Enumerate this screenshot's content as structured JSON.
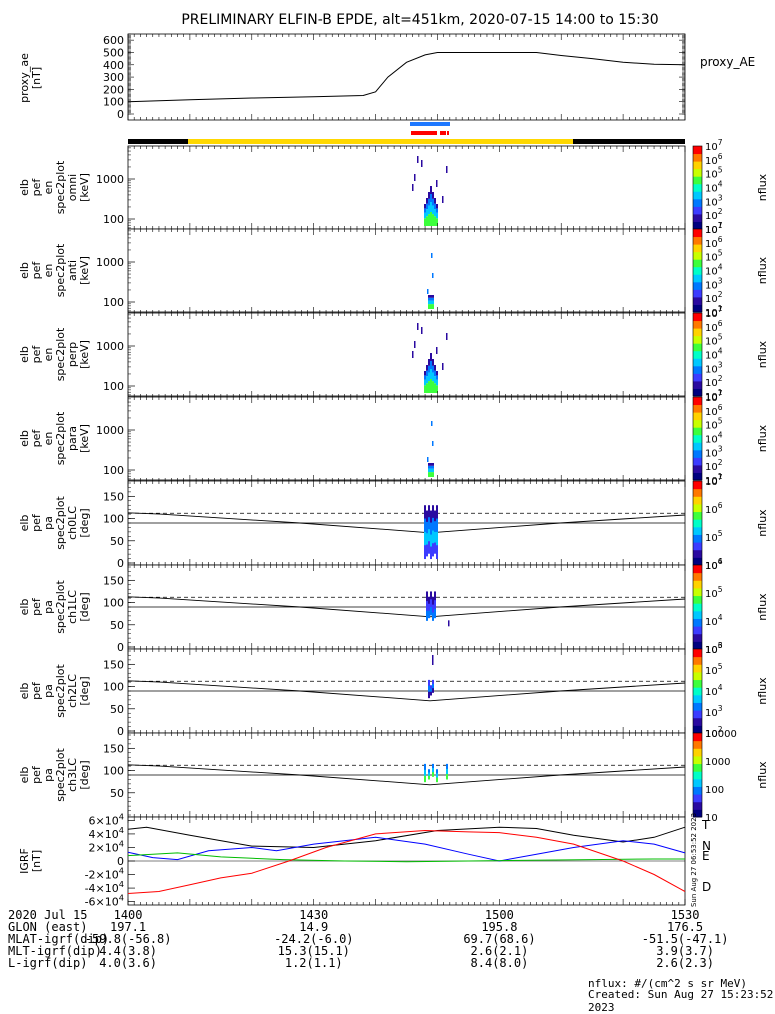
{
  "title": "PRELIMINARY ELFIN-B EPDE, alt=451km, 2020-07-15 14:00 to 15:30",
  "chart_data": [
    {
      "type": "line",
      "name": "proxy_ae_panel",
      "ylabel_lines": [
        "proxy_ae",
        "[nT]"
      ],
      "series_label": "proxy_AE",
      "ylim": [
        0,
        650
      ],
      "yticks": [
        "0",
        "100",
        "200",
        "300",
        "400",
        "500",
        "600"
      ],
      "xlim_minutes": [
        0,
        90
      ],
      "series": [
        {
          "name": "proxy_AE",
          "x_minutes": [
            0,
            10,
            20,
            30,
            38,
            40,
            42,
            45,
            48,
            50,
            52,
            55,
            60,
            66,
            70,
            75,
            80,
            85,
            90
          ],
          "values": [
            100,
            115,
            130,
            140,
            150,
            180,
            300,
            420,
            480,
            500,
            500,
            500,
            500,
            500,
            475,
            450,
            420,
            405,
            400
          ]
        }
      ]
    },
    {
      "type": "heatmap",
      "name": "omni_spectrogram",
      "ylabel_lines": [
        "elb",
        "pef",
        "en",
        "spec2plot",
        "omni",
        "[keV]"
      ],
      "yticks": [
        "100",
        "1000"
      ],
      "colorbar_label": "nflux",
      "colorbar_ticks": [
        "10^1",
        "10^2",
        "10^3",
        "10^4",
        "10^5",
        "10^6",
        "10^7"
      ]
    },
    {
      "type": "heatmap",
      "name": "anti_spectrogram",
      "ylabel_lines": [
        "elb",
        "pef",
        "en",
        "spec2plot",
        "anti",
        "[keV]"
      ],
      "yticks": [
        "100",
        "1000"
      ],
      "colorbar_label": "nflux",
      "colorbar_ticks": [
        "10^1",
        "10^2",
        "10^3",
        "10^4",
        "10^5",
        "10^6",
        "10^7"
      ]
    },
    {
      "type": "heatmap",
      "name": "perp_spectrogram",
      "ylabel_lines": [
        "elb",
        "pef",
        "en",
        "spec2plot",
        "perp",
        "[keV]"
      ],
      "yticks": [
        "100",
        "1000"
      ],
      "colorbar_label": "nflux",
      "colorbar_ticks": [
        "10^1",
        "10^2",
        "10^3",
        "10^4",
        "10^5",
        "10^6",
        "10^7"
      ]
    },
    {
      "type": "heatmap",
      "name": "para_spectrogram",
      "ylabel_lines": [
        "elb",
        "pef",
        "en",
        "spec2plot",
        "para",
        "[keV]"
      ],
      "yticks": [
        "100",
        "1000"
      ],
      "colorbar_label": "nflux",
      "colorbar_ticks": [
        "10^1",
        "10^2",
        "10^3",
        "10^4",
        "10^5",
        "10^6",
        "10^7"
      ]
    },
    {
      "type": "heatmap",
      "name": "ch0LC_pitch_angle",
      "ylabel_lines": [
        "elb",
        "pef",
        "pa",
        "spec2plot",
        "ch0LC",
        "[deg]"
      ],
      "yticks": [
        "0",
        "50",
        "100",
        "150"
      ],
      "colorbar_label": "nflux",
      "colorbar_ticks": [
        "10^4",
        "10^5",
        "10^6",
        "10^7"
      ]
    },
    {
      "type": "heatmap",
      "name": "ch1LC_pitch_angle",
      "ylabel_lines": [
        "elb",
        "pef",
        "pa",
        "spec2plot",
        "ch1LC",
        "[deg]"
      ],
      "yticks": [
        "0",
        "50",
        "100",
        "150"
      ],
      "colorbar_label": "nflux",
      "colorbar_ticks": [
        "10^3",
        "10^4",
        "10^5",
        "10^6"
      ]
    },
    {
      "type": "heatmap",
      "name": "ch2LC_pitch_angle",
      "ylabel_lines": [
        "elb",
        "pef",
        "pa",
        "spec2plot",
        "ch2LC",
        "[deg]"
      ],
      "yticks": [
        "0",
        "50",
        "100",
        "150"
      ],
      "colorbar_label": "nflux",
      "colorbar_ticks": [
        "10^2",
        "10^3",
        "10^4",
        "10^5",
        "10^6"
      ]
    },
    {
      "type": "heatmap",
      "name": "ch3LC_pitch_angle",
      "ylabel_lines": [
        "elb",
        "pef",
        "pa",
        "spec2plot",
        "ch3LC",
        "[deg]"
      ],
      "yticks": [
        "50",
        "100",
        "150"
      ],
      "colorbar_label": "nflux",
      "colorbar_ticks": [
        "10",
        "100",
        "1000",
        "10000"
      ]
    },
    {
      "type": "line",
      "name": "igrf_panel",
      "ylabel_lines": [
        "IGRF",
        "[nT]"
      ],
      "ylim": [
        -65000,
        65000
      ],
      "yticks": [
        "-6×10^4",
        "-4×10^4",
        "-2×10^4",
        "0",
        "2×10^4",
        "4×10^4",
        "6×10^4"
      ],
      "xlim_minutes": [
        0,
        90
      ],
      "series": [
        {
          "name": "T",
          "color": "#000000",
          "x_minutes": [
            0,
            3,
            10,
            20,
            30,
            40,
            50,
            60,
            66,
            72,
            80,
            85,
            90
          ],
          "values": [
            47000,
            50000,
            38000,
            22000,
            20000,
            30000,
            45000,
            50000,
            48000,
            38000,
            28000,
            35000,
            50000
          ]
        },
        {
          "name": "N",
          "color": "#0000ff",
          "x_minutes": [
            0,
            4,
            8,
            13,
            20,
            24,
            30,
            40,
            48,
            55,
            60,
            66,
            72,
            80,
            85,
            90
          ],
          "values": [
            13000,
            5000,
            2000,
            15000,
            20000,
            15000,
            25000,
            35000,
            25000,
            10000,
            0,
            10000,
            20000,
            30000,
            25000,
            12000
          ]
        },
        {
          "name": "E",
          "color": "#00bb00",
          "x_minutes": [
            0,
            8,
            15,
            25,
            35,
            45,
            55,
            65,
            75,
            85,
            90
          ],
          "values": [
            8000,
            12000,
            6000,
            2000,
            0,
            -1000,
            0,
            1000,
            2000,
            3000,
            3000
          ]
        },
        {
          "name": "D",
          "color": "#ff0000",
          "x_minutes": [
            0,
            5,
            10,
            15,
            20,
            26,
            32,
            40,
            48,
            55,
            60,
            66,
            72,
            80,
            85,
            90
          ],
          "values": [
            -48000,
            -45000,
            -35000,
            -25000,
            -18000,
            0,
            20000,
            40000,
            45000,
            43000,
            42000,
            35000,
            25000,
            0,
            -20000,
            -45000
          ]
        }
      ]
    }
  ],
  "colorbar_label": "nflux",
  "igrf_legend": [
    "T",
    "N",
    "E",
    "D"
  ],
  "stamp": "Sun Aug 27 06:53:52 2023",
  "footer": {
    "rows": [
      {
        "label": "2020 Jul 15",
        "values": [
          "1400",
          "1430",
          "1500",
          "1530"
        ]
      },
      {
        "label": "GLON (east)",
        "values": [
          "197.1",
          "14.9",
          "195.8",
          "176.5"
        ]
      },
      {
        "label": "MLAT-igrf(dip)",
        "values": [
          "-59.8(-56.8)",
          "-24.2(-6.0)",
          "69.7(68.6)",
          "-51.5(-47.1)"
        ]
      },
      {
        "label": "MLT-igrf(dip)",
        "values": [
          "4.4(3.8)",
          "15.3(15.1)",
          "2.6(2.1)",
          "3.9(3.7)"
        ]
      },
      {
        "label": "L-igrf(dip)",
        "values": [
          "4.0(3.6)",
          "1.2(1.1)",
          "8.4(8.0)",
          "2.6(2.3)"
        ]
      }
    ],
    "units_note": "nflux: #/(cm^2 s sr MeV)",
    "created": "Created: Sun Aug 27 15:23:52 2023"
  }
}
